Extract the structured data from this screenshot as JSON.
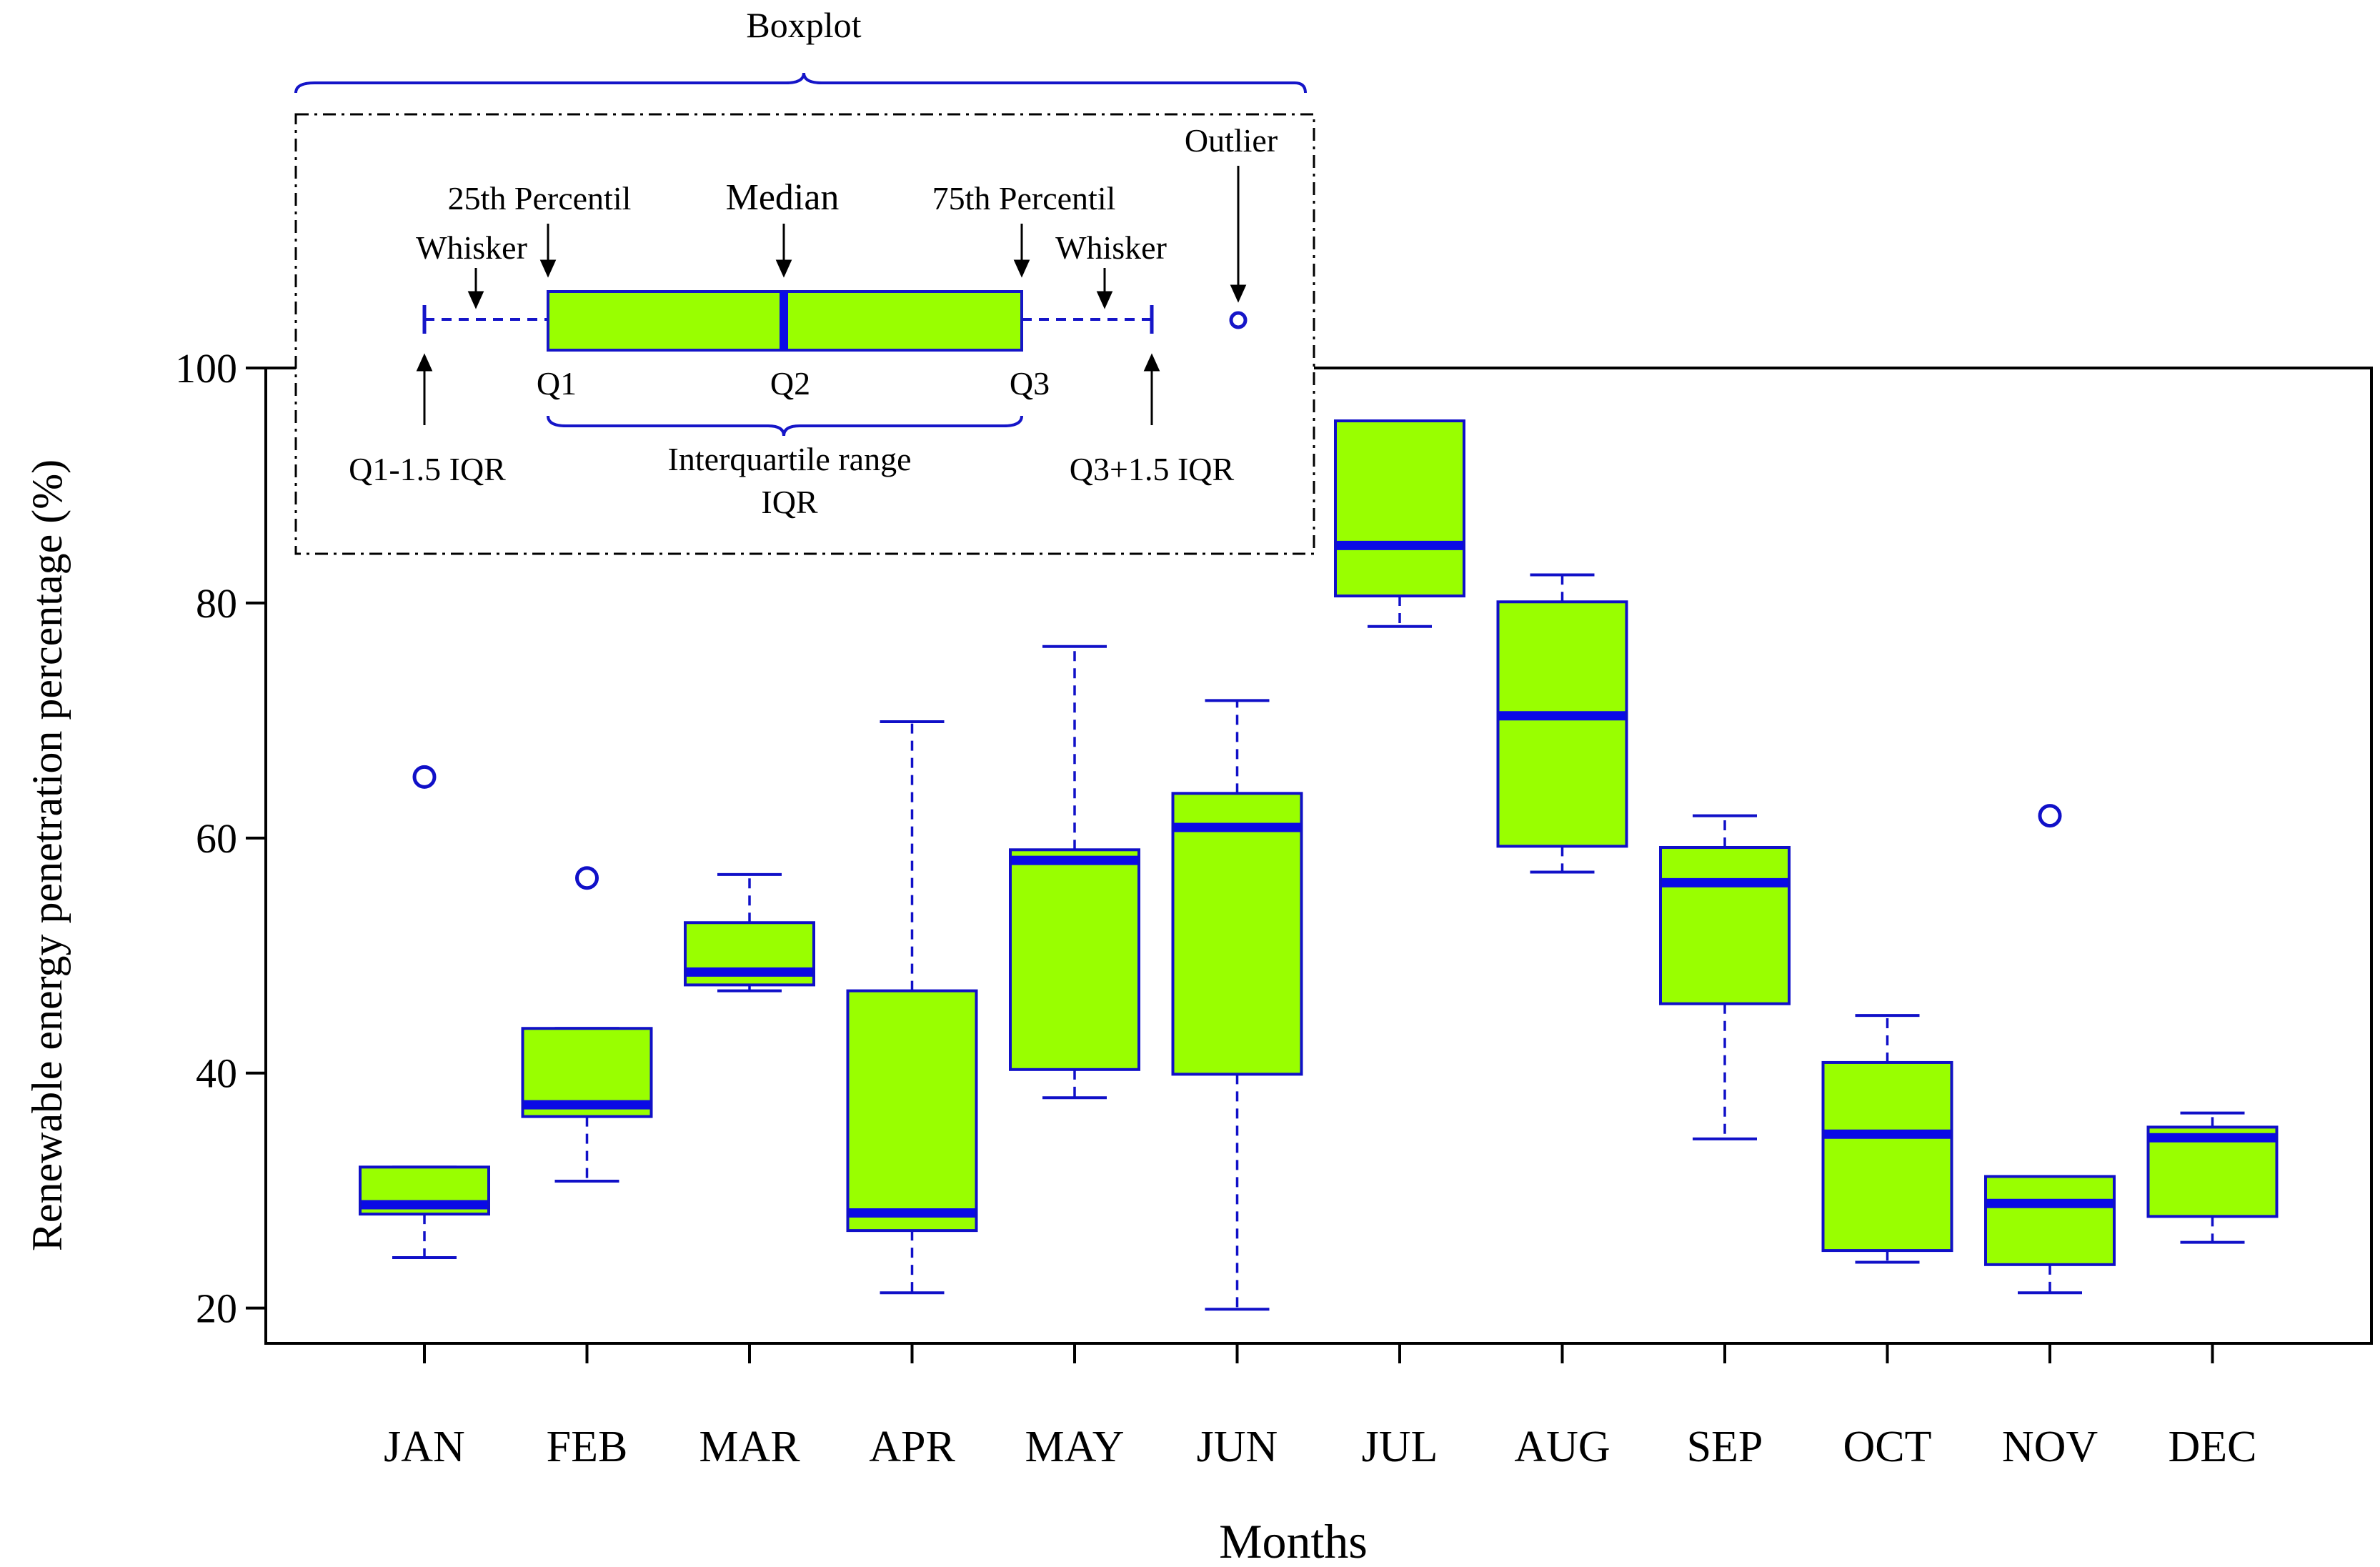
{
  "colors": {
    "box_fill": "#99FF00",
    "box_stroke": "#1010C8",
    "median": "#0A0AE6",
    "axis": "#000000"
  },
  "chart_data": {
    "type": "box",
    "xlabel": "Months",
    "ylabel": "Renewable energy penetration percentage (%)",
    "ylim": [
      17,
      100
    ],
    "yticks": [
      20,
      40,
      60,
      80,
      100
    ],
    "categories": [
      "JAN",
      "FEB",
      "MAR",
      "APR",
      "MAY",
      "JUN",
      "JUL",
      "AUG",
      "SEP",
      "OCT",
      "NOV",
      "DEC"
    ],
    "boxes": [
      {
        "month": "JAN",
        "whisker_low": 24.3,
        "q1": 28.0,
        "median": 28.8,
        "q3": 32.0,
        "whisker_high": 32.0,
        "outliers": [
          65.2
        ]
      },
      {
        "month": "FEB",
        "whisker_low": 30.8,
        "q1": 36.3,
        "median": 37.3,
        "q3": 43.8,
        "whisker_high": 43.8,
        "outliers": [
          56.6
        ]
      },
      {
        "month": "MAR",
        "whisker_low": 47.0,
        "q1": 47.5,
        "median": 48.6,
        "q3": 52.8,
        "whisker_high": 56.9,
        "outliers": []
      },
      {
        "month": "APR",
        "whisker_low": 21.3,
        "q1": 26.6,
        "median": 28.1,
        "q3": 47.0,
        "whisker_high": 69.9,
        "outliers": []
      },
      {
        "month": "MAY",
        "whisker_low": 37.9,
        "q1": 40.3,
        "median": 58.1,
        "q3": 59.0,
        "whisker_high": 76.3,
        "outliers": []
      },
      {
        "month": "JUN",
        "whisker_low": 19.9,
        "q1": 39.9,
        "median": 60.9,
        "q3": 63.8,
        "whisker_high": 71.7,
        "outliers": []
      },
      {
        "month": "JUL",
        "whisker_low": 78.0,
        "q1": 80.6,
        "median": 84.9,
        "q3": 95.5,
        "whisker_high": 95.5,
        "outliers": []
      },
      {
        "month": "AUG",
        "whisker_low": 57.1,
        "q1": 59.3,
        "median": 70.4,
        "q3": 80.1,
        "whisker_high": 82.4,
        "outliers": []
      },
      {
        "month": "SEP",
        "whisker_low": 34.4,
        "q1": 45.9,
        "median": 56.2,
        "q3": 59.2,
        "whisker_high": 61.9,
        "outliers": []
      },
      {
        "month": "OCT",
        "whisker_low": 23.9,
        "q1": 24.9,
        "median": 34.8,
        "q3": 40.9,
        "whisker_high": 44.9,
        "outliers": []
      },
      {
        "month": "NOV",
        "whisker_low": 21.3,
        "q1": 23.7,
        "median": 28.9,
        "q3": 31.2,
        "whisker_high": 31.2,
        "outliers": [
          61.9
        ]
      },
      {
        "month": "DEC",
        "whisker_low": 25.6,
        "q1": 27.8,
        "median": 34.5,
        "q3": 35.4,
        "whisker_high": 36.6,
        "outliers": []
      }
    ]
  },
  "legend": {
    "title": "Boxplot",
    "outlier": "Outlier",
    "p25": "25th Percentil",
    "median": "Median",
    "p75": "75th Percentil",
    "whisker_left": "Whisker",
    "whisker_right": "Whisker",
    "q1": "Q1",
    "q2": "Q2",
    "q3": "Q3",
    "lower_fence": "Q1-1.5 IQR",
    "upper_fence": "Q3+1.5 IQR",
    "iqr_line1": "Interquartile range",
    "iqr_line2": "IQR"
  }
}
